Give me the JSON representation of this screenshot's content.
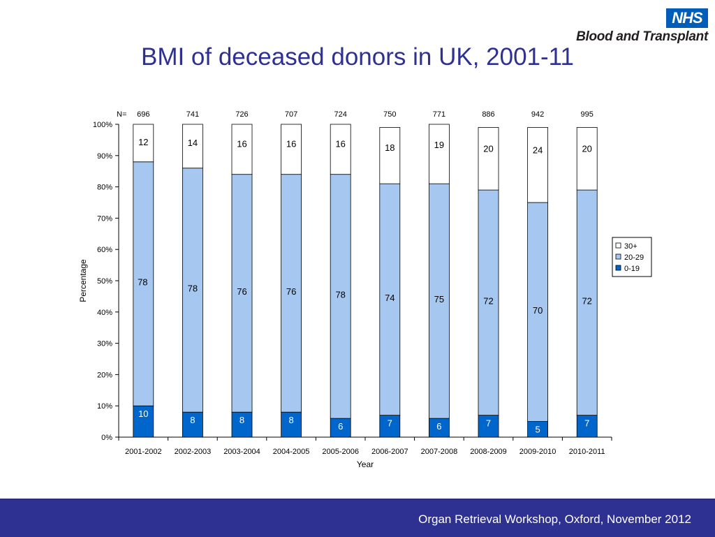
{
  "logo": {
    "badge": "NHS",
    "text": "Blood and Transplant"
  },
  "title": "BMI of deceased donors in UK, 2001-11",
  "footer": "Organ Retrieval Workshop, Oxford, November 2012",
  "colors": {
    "title": "#2e3192",
    "footer_bg": "#2e3192",
    "nhs_blue": "#005EB8"
  },
  "chart_data": {
    "type": "bar",
    "stacked": true,
    "categories": [
      "2001-2002",
      "2002-2003",
      "2003-2004",
      "2004-2005",
      "2005-2006",
      "2006-2007",
      "2007-2008",
      "2008-2009",
      "2009-2010",
      "2010-2011"
    ],
    "n_prefix": "N=",
    "n_values": [
      696,
      741,
      726,
      707,
      724,
      750,
      771,
      886,
      942,
      995
    ],
    "series": [
      {
        "name": "0-19",
        "color": "#0066cc",
        "values": [
          10,
          8,
          8,
          8,
          6,
          7,
          6,
          7,
          5,
          7
        ]
      },
      {
        "name": "20-29",
        "color": "#a6c8f0",
        "values": [
          78,
          78,
          76,
          76,
          78,
          74,
          75,
          72,
          70,
          72
        ]
      },
      {
        "name": "30+",
        "color": "#ffffff",
        "values": [
          12,
          14,
          16,
          16,
          16,
          18,
          19,
          20,
          24,
          20
        ]
      }
    ],
    "legend_order": [
      "30+",
      "20-29",
      "0-19"
    ],
    "yticks": [
      "0%",
      "10%",
      "20%",
      "30%",
      "40%",
      "50%",
      "60%",
      "70%",
      "80%",
      "90%",
      "100%"
    ],
    "ylim": [
      0,
      100
    ],
    "xlabel": "Year",
    "ylabel": "Percentage",
    "legend_position": "right",
    "grid": false
  }
}
